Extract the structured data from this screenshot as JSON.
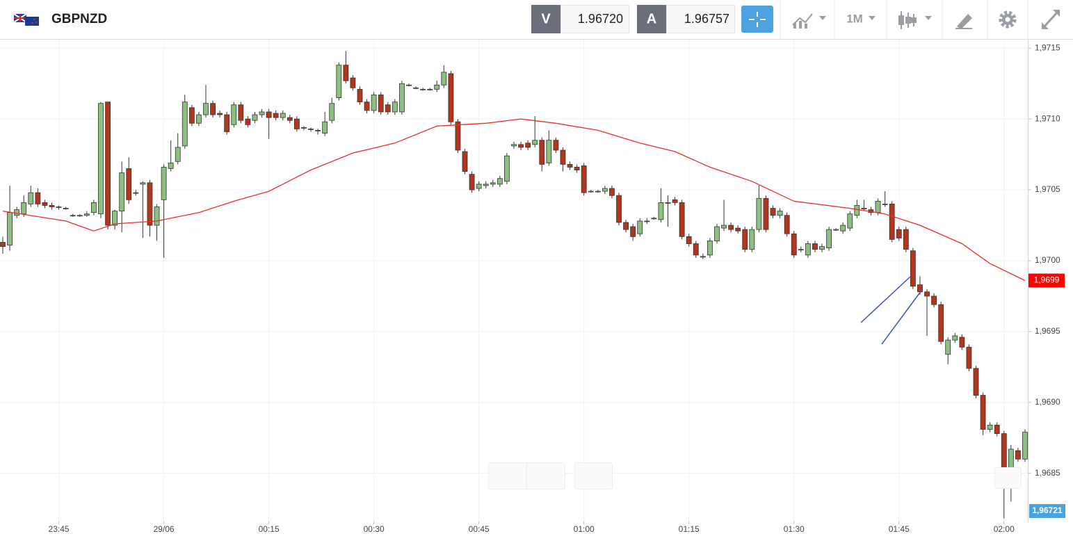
{
  "header": {
    "symbol": "GBPNZD",
    "bid_label": "V",
    "bid": "1.96720",
    "ask_label": "A",
    "ask": "1.96757",
    "timeframe": "1M"
  },
  "chart_data": {
    "type": "candlestick",
    "open": [
      1.97013,
      1.97011,
      1.97032,
      1.97033,
      1.9704,
      1.97048,
      1.97041,
      1.97039,
      1.97038,
      1.97037,
      1.97032,
      1.97032,
      1.97032,
      1.97034,
      1.97033,
      1.97112,
      1.97025,
      1.97035,
      1.97065,
      1.97048,
      1.97054,
      1.97055,
      1.97025,
      1.97043,
      1.97065,
      1.9707,
      1.97081,
      1.97108,
      1.97097,
      1.97103,
      1.97111,
      1.97104,
      1.97103,
      1.97096,
      1.9711,
      1.971,
      1.97099,
      1.97103,
      1.97105,
      1.97104,
      1.97101,
      1.97101,
      1.971,
      1.97094,
      1.97093,
      1.97092,
      1.9709,
      1.97099,
      1.97115,
      1.97138,
      1.97129,
      1.97121,
      1.97112,
      1.97106,
      1.97117,
      1.9711,
      1.97105,
      1.97105,
      1.97124,
      1.97122,
      1.97121,
      1.97121,
      1.97121,
      1.97124,
      1.97132,
      1.97098,
      1.97077,
      1.97061,
      1.97051,
      1.97053,
      1.97054,
      1.97054,
      1.97056,
      1.97081,
      1.97082,
      1.97083,
      1.97082,
      1.97085,
      1.97069,
      1.97085,
      1.97078,
      1.97068,
      1.97066,
      1.97067,
      1.97049,
      1.97049,
      1.97049,
      1.97051,
      1.97046,
      1.97027,
      1.97024,
      1.97019,
      1.97028,
      1.9703,
      1.97029,
      1.97041,
      1.97043,
      1.97041,
      1.97017,
      1.97012,
      1.97003,
      1.97004,
      1.97014,
      1.97023,
      1.97025,
      1.97023,
      1.97022,
      1.97008,
      1.97022,
      1.97044,
      1.97037,
      1.97032,
      1.97032,
      1.97019,
      1.97008,
      1.97004,
      1.97012,
      1.97008,
      1.97009,
      1.97022,
      1.97021,
      1.97023,
      1.97032,
      1.97037,
      1.97036,
      1.97034,
      1.9704,
      1.9704,
      1.97022,
      1.97022,
      1.97007,
      1.96983,
      1.96978,
      1.96975,
      1.96969,
      1.96934,
      1.96944,
      1.96946,
      1.96939,
      1.96924,
      1.96905,
      1.96881,
      1.96884,
      1.96878,
      1.9685,
      1.96866,
      1.9686
    ],
    "high": [
      1.97017,
      1.97053,
      1.97038,
      1.97046,
      1.97053,
      1.97051,
      1.97043,
      1.97041,
      1.97039,
      1.97038,
      1.97033,
      1.97033,
      1.97035,
      1.97043,
      1.97112,
      1.97112,
      1.97036,
      1.9707,
      1.97073,
      1.9705,
      1.97056,
      1.97057,
      1.9704,
      1.97068,
      1.97085,
      1.9709,
      1.97117,
      1.9711,
      1.97105,
      1.97124,
      1.97113,
      1.97106,
      1.97105,
      1.97112,
      1.97112,
      1.97102,
      1.97105,
      1.97107,
      1.97107,
      1.97106,
      1.97106,
      1.97103,
      1.97102,
      1.97095,
      1.97094,
      1.97093,
      1.97105,
      1.97115,
      1.9714,
      1.97148,
      1.97131,
      1.97123,
      1.97114,
      1.97119,
      1.97119,
      1.97112,
      1.97114,
      1.97127,
      1.97125,
      1.97123,
      1.97122,
      1.97122,
      1.97127,
      1.97138,
      1.97134,
      1.971,
      1.97079,
      1.97063,
      1.97056,
      1.97056,
      1.97057,
      1.9706,
      1.97076,
      1.97084,
      1.97084,
      1.97085,
      1.97102,
      1.97087,
      1.97092,
      1.97087,
      1.9708,
      1.9707,
      1.97068,
      1.97069,
      1.9705,
      1.9705,
      1.97053,
      1.97053,
      1.97048,
      1.97029,
      1.97026,
      1.9703,
      1.9703,
      1.97031,
      1.97051,
      1.97046,
      1.97045,
      1.97043,
      1.97019,
      1.97014,
      1.97005,
      1.97016,
      1.97026,
      1.97043,
      1.97027,
      1.97025,
      1.97024,
      1.97024,
      1.97053,
      1.97046,
      1.97039,
      1.97037,
      1.97034,
      1.97021,
      1.9701,
      1.97014,
      1.97014,
      1.97012,
      1.97024,
      1.97023,
      1.97027,
      1.97035,
      1.97043,
      1.97043,
      1.97038,
      1.97044,
      1.97049,
      1.97042,
      1.97024,
      1.97024,
      1.97009,
      1.96989,
      1.9698,
      1.96977,
      1.96971,
      1.96946,
      1.96949,
      1.96948,
      1.96941,
      1.96926,
      1.96907,
      1.96886,
      1.96886,
      1.9688,
      1.9687,
      1.96868,
      1.96881
    ],
    "low": [
      1.97005,
      1.97007,
      1.9703,
      1.97031,
      1.97038,
      1.97038,
      1.97037,
      1.97036,
      1.97036,
      1.97036,
      1.97031,
      1.97031,
      1.97031,
      1.97032,
      1.9703,
      1.97022,
      1.97022,
      1.9702,
      1.9704,
      1.97046,
      1.97016,
      1.97017,
      1.97014,
      1.97002,
      1.97063,
      1.97068,
      1.97079,
      1.97095,
      1.97095,
      1.97101,
      1.97101,
      1.97101,
      1.97089,
      1.97094,
      1.97097,
      1.97094,
      1.97097,
      1.97101,
      1.97086,
      1.97099,
      1.97099,
      1.97097,
      1.97091,
      1.97092,
      1.97091,
      1.97089,
      1.97088,
      1.97097,
      1.97113,
      1.97125,
      1.9712,
      1.9711,
      1.97104,
      1.97104,
      1.97103,
      1.97103,
      1.97103,
      1.97103,
      1.97123,
      1.97121,
      1.9712,
      1.9712,
      1.97119,
      1.97122,
      1.97096,
      1.97076,
      1.97061,
      1.97048,
      1.97049,
      1.97051,
      1.97052,
      1.97052,
      1.97054,
      1.97079,
      1.97078,
      1.97078,
      1.9708,
      1.97063,
      1.97067,
      1.97076,
      1.97063,
      1.97064,
      1.97062,
      1.97046,
      1.97048,
      1.97048,
      1.97047,
      1.97044,
      1.97025,
      1.9702,
      1.97014,
      1.97017,
      1.97026,
      1.97029,
      1.97027,
      1.97024,
      1.97039,
      1.97015,
      1.9701,
      1.97002,
      1.97001,
      1.97002,
      1.97012,
      1.97021,
      1.9702,
      1.97019,
      1.97006,
      1.97006,
      1.9702,
      1.9702,
      1.9703,
      1.9703,
      1.97017,
      1.97002,
      1.97006,
      1.97002,
      1.97006,
      1.97006,
      1.97007,
      1.97021,
      1.97019,
      1.97021,
      1.9703,
      1.97035,
      1.97032,
      1.97032,
      1.97038,
      1.97013,
      1.97014,
      1.97006,
      1.9698,
      1.96976,
      1.96947,
      1.96967,
      1.96941,
      1.96927,
      1.96942,
      1.96937,
      1.96922,
      1.96903,
      1.96877,
      1.96879,
      1.96876,
      1.96818,
      1.9683,
      1.96858,
      1.96858
    ],
    "close": [
      1.9701,
      1.97034,
      1.97036,
      1.97041,
      1.97048,
      1.9704,
      1.97039,
      1.97038,
      1.97038,
      1.97037,
      1.97032,
      1.97032,
      1.97033,
      1.97041,
      1.97111,
      1.97025,
      1.97035,
      1.97062,
      1.97043,
      1.97048,
      1.97055,
      1.97025,
      1.97038,
      1.97066,
      1.97069,
      1.9708,
      1.97112,
      1.97097,
      1.97103,
      1.97111,
      1.97103,
      1.97103,
      1.97091,
      1.9711,
      1.97099,
      1.97096,
      1.97103,
      1.97105,
      1.97101,
      1.97101,
      1.97104,
      1.97099,
      1.97093,
      1.97094,
      1.97093,
      1.97092,
      1.97098,
      1.97111,
      1.97138,
      1.97127,
      1.97122,
      1.97112,
      1.97106,
      1.97117,
      1.97105,
      1.97105,
      1.97112,
      1.97125,
      1.97124,
      1.97122,
      1.97121,
      1.97121,
      1.97124,
      1.97133,
      1.97098,
      1.97078,
      1.97063,
      1.9705,
      1.97054,
      1.97054,
      1.97055,
      1.97058,
      1.97074,
      1.97082,
      1.9708,
      1.9708,
      1.97085,
      1.97068,
      1.97085,
      1.97078,
      1.97068,
      1.97066,
      1.97064,
      1.97048,
      1.97049,
      1.97049,
      1.97051,
      1.97046,
      1.97027,
      1.97022,
      1.97017,
      1.97028,
      1.97028,
      1.9703,
      1.97041,
      1.97041,
      1.97041,
      1.97017,
      1.97012,
      1.97004,
      1.97003,
      1.97014,
      1.97024,
      1.97025,
      1.97022,
      1.97021,
      1.97008,
      1.97022,
      1.97044,
      1.97022,
      1.97032,
      1.97035,
      1.97019,
      1.97004,
      1.97008,
      1.97012,
      1.97008,
      1.9701,
      1.97022,
      1.97022,
      1.97025,
      1.97033,
      1.97039,
      1.97037,
      1.97034,
      1.97042,
      1.9704,
      1.97015,
      1.97016,
      1.97008,
      1.96982,
      1.96978,
      1.96975,
      1.96969,
      1.96943,
      1.96944,
      1.96947,
      1.96939,
      1.96924,
      1.96905,
      1.96881,
      1.96884,
      1.96878,
      1.9685,
      1.96867,
      1.9686,
      1.96879
    ],
    "up_color": "#8cbf80",
    "down_color": "#b3361c",
    "moving_average": {
      "color": "#ef2b2b",
      "x": [
        0,
        9,
        13,
        16,
        22,
        28,
        33,
        38,
        44,
        50,
        56,
        62,
        69,
        74,
        79,
        85,
        91,
        96,
        101,
        107,
        113,
        121,
        126,
        131,
        137,
        141,
        146
      ],
      "values": [
        1.97035,
        1.97028,
        1.97021,
        1.97026,
        1.97028,
        1.97034,
        1.97042,
        1.97049,
        1.97064,
        1.97076,
        1.97083,
        1.97095,
        1.97097,
        1.971,
        1.97097,
        1.97092,
        1.97083,
        1.97077,
        1.97066,
        1.97056,
        1.97042,
        1.97037,
        1.97033,
        1.97025,
        1.97012,
        1.96998,
        1.96986
      ]
    },
    "xlim": [
      -0.4,
      146.4
    ],
    "xticks": [
      {
        "value": 8,
        "label": "23:45"
      },
      {
        "value": 23,
        "label": "29/06"
      },
      {
        "value": 38,
        "label": "00:15"
      },
      {
        "value": 53,
        "label": "00:30"
      },
      {
        "value": 68,
        "label": "00:45"
      },
      {
        "value": 83,
        "label": "01:00"
      },
      {
        "value": 98,
        "label": "01:15"
      },
      {
        "value": 113,
        "label": "01:30"
      },
      {
        "value": 128,
        "label": "01:45"
      },
      {
        "value": 143,
        "label": "02:00"
      }
    ],
    "ylim": [
      1.96816,
      1.97156
    ],
    "yticks": [
      {
        "value": 1.9715,
        "label": "1,9715"
      },
      {
        "value": 1.971,
        "label": "1,9710"
      },
      {
        "value": 1.9705,
        "label": "1,9705"
      },
      {
        "value": 1.97,
        "label": "1,9700"
      },
      {
        "value": 1.9695,
        "label": "1,9695"
      },
      {
        "value": 1.969,
        "label": "1,9690"
      },
      {
        "value": 1.9685,
        "label": "1,9685"
      }
    ],
    "grid": true,
    "price_marker": {
      "value": 1.96986,
      "label": "1,9699",
      "color": "#ff0000"
    },
    "last_price_label": "1,96721",
    "last_price_color": "#4aa3df"
  }
}
